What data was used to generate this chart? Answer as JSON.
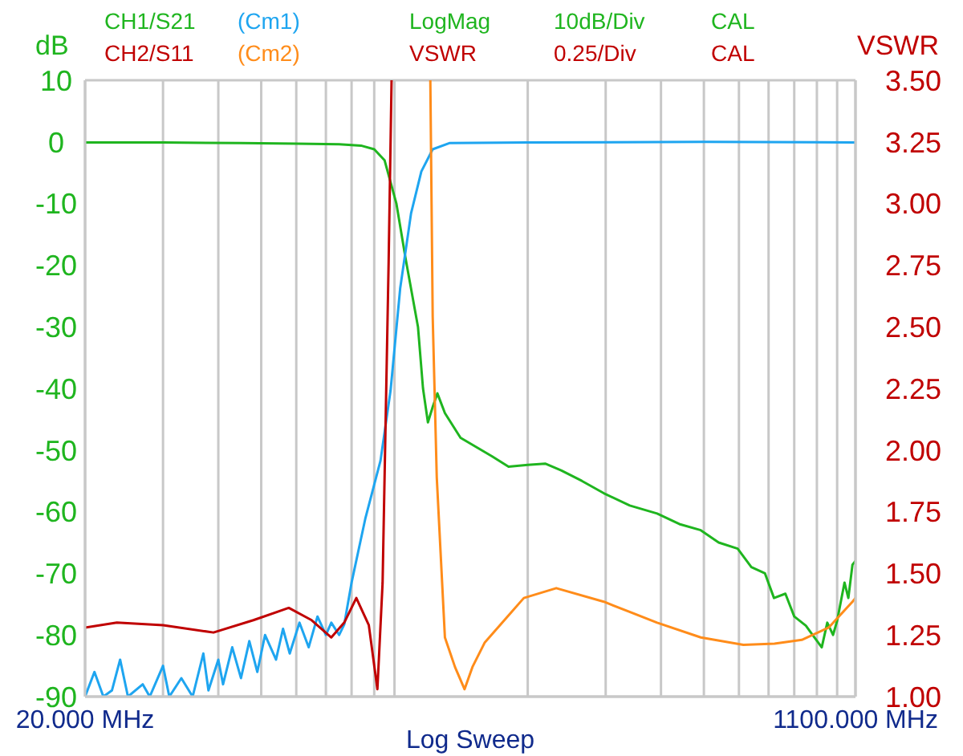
{
  "chart_data": {
    "type": "line",
    "xlabel": "Log Sweep",
    "ylabel": "dB",
    "y2label": "VSWR",
    "annotations": [
      "LogMag",
      "10dB/Div",
      "CAL",
      "VSWR",
      "0.25/Div",
      "CAL"
    ],
    "log": "x",
    "grid": true,
    "legend": "top left",
    "marker": "none",
    "line_style": "solid",
    "xlim": [
      20,
      1100
    ],
    "xticks": [
      {
        "value": 20,
        "label": "20.000 MHz"
      },
      {
        "value": 30,
        "label": null
      },
      {
        "value": 40,
        "label": null
      },
      {
        "value": 50,
        "label": null
      },
      {
        "value": 60,
        "label": null
      },
      {
        "value": 70,
        "label": null
      },
      {
        "value": 80,
        "label": null
      },
      {
        "value": 90,
        "label": null
      },
      {
        "value": 100,
        "label": null
      },
      {
        "value": 200,
        "label": null
      },
      {
        "value": 300,
        "label": null
      },
      {
        "value": 400,
        "label": null
      },
      {
        "value": 500,
        "label": null
      },
      {
        "value": 600,
        "label": null
      },
      {
        "value": 700,
        "label": null
      },
      {
        "value": 800,
        "label": null
      },
      {
        "value": 900,
        "label": null
      },
      {
        "value": 1000,
        "label": null
      },
      {
        "value": 1100,
        "label": "1100.000 MHz"
      }
    ],
    "ylim": [
      -90,
      10
    ],
    "yticks": [
      -90,
      -80,
      -70,
      -60,
      -50,
      -40,
      -30,
      -20,
      -10,
      0,
      10
    ],
    "y2lim": [
      1,
      3.5
    ],
    "y2ticks": [
      {
        "value": 1,
        "label": "1.00"
      },
      {
        "value": 1.25,
        "label": "1.25"
      },
      {
        "value": 1.5,
        "label": "1.50"
      },
      {
        "value": 1.75,
        "label": "1.75"
      },
      {
        "value": 2,
        "label": "2.00"
      },
      {
        "value": 2.25,
        "label": "2.25"
      },
      {
        "value": 2.5,
        "label": "2.50"
      },
      {
        "value": 2.75,
        "label": "2.75"
      },
      {
        "value": 3,
        "label": "3.00"
      },
      {
        "value": 3.25,
        "label": "3.25"
      },
      {
        "value": 3.5,
        "label": "3.50"
      }
    ],
    "series": [
      {
        "name": "CH1/S21",
        "color": "#1fb51f",
        "x": [
          20,
          30,
          45,
          60,
          75,
          84,
          90,
          95,
          101,
          106,
          113,
          116,
          119,
          122,
          125,
          130,
          141,
          166,
          181,
          200,
          219,
          238,
          265,
          297,
          340,
          392,
          440,
          492,
          540,
          596,
          640,
          687,
          720,
          764,
          800,
          850,
          880,
          923,
          950,
          979,
          1000,
          1039,
          1060,
          1083,
          1100
        ],
        "values": [
          -0.1,
          -0.1,
          -0.2,
          -0.3,
          -0.4,
          -0.6,
          -1.2,
          -3,
          -10,
          -19,
          -30,
          -40,
          -45.5,
          -43,
          -40.8,
          -44,
          -48,
          -51,
          -52.7,
          -52.4,
          -52.2,
          -53.3,
          -55,
          -57,
          -59,
          -60.3,
          -62,
          -63,
          -65,
          -66,
          -69,
          -70,
          -74,
          -73.3,
          -77,
          -78.5,
          -80,
          -82,
          -78,
          -80,
          -77.7,
          -71.5,
          -74,
          -68.6,
          -68
        ]
      },
      {
        "name": "(Cm1)",
        "color": "#1ea5f0",
        "x": [
          20,
          21,
          22,
          23,
          24,
          25,
          27,
          28,
          30,
          31,
          33,
          35,
          37,
          38,
          40,
          41,
          43,
          45,
          47,
          49,
          51,
          54,
          56,
          58,
          61,
          64,
          67,
          70,
          72,
          75,
          77,
          80,
          86,
          93,
          98,
          103,
          109,
          115,
          122,
          133,
          200,
          500,
          1100
        ],
        "values": [
          -90,
          -86,
          -90,
          -89,
          -84,
          -90,
          -88,
          -90,
          -85,
          -90,
          -87,
          -90,
          -83,
          -89,
          -84,
          -88,
          -82,
          -87,
          -81,
          -86,
          -80,
          -84,
          -79,
          -83,
          -78,
          -82,
          -77,
          -80,
          -78,
          -80,
          -78.3,
          -71.5,
          -61,
          -51.7,
          -40.3,
          -23.8,
          -11.6,
          -4.8,
          -1.2,
          -0.2,
          -0.1,
          0,
          -0.1
        ]
      },
      {
        "name": "CH2/S11",
        "color": "#c00000",
        "axis": "y2",
        "x": [
          20,
          23.6,
          30,
          39,
          48,
          57.7,
          65,
          72,
          77,
          82,
          87.5,
          91.5,
          94,
          97,
          98.5
        ],
        "values": [
          1.28,
          1.3,
          1.29,
          1.26,
          1.31,
          1.36,
          1.31,
          1.24,
          1.3,
          1.4,
          1.29,
          1.03,
          1.46,
          2.76,
          3.5
        ]
      },
      {
        "name": "(Cm2)",
        "color": "#ff8c1a",
        "axis": "y2",
        "x": [
          120.5,
          122,
          124.6,
          130,
          137,
          144,
          150,
          160,
          196,
          232,
          297,
          392,
          492,
          614,
          722,
          832,
          957,
          1083,
          1100
        ],
        "values": [
          3.5,
          2.54,
          1.89,
          1.24,
          1.12,
          1.03,
          1.12,
          1.22,
          1.4,
          1.44,
          1.385,
          1.3,
          1.24,
          1.21,
          1.215,
          1.23,
          1.28,
          1.385,
          1.4
        ]
      }
    ]
  }
}
